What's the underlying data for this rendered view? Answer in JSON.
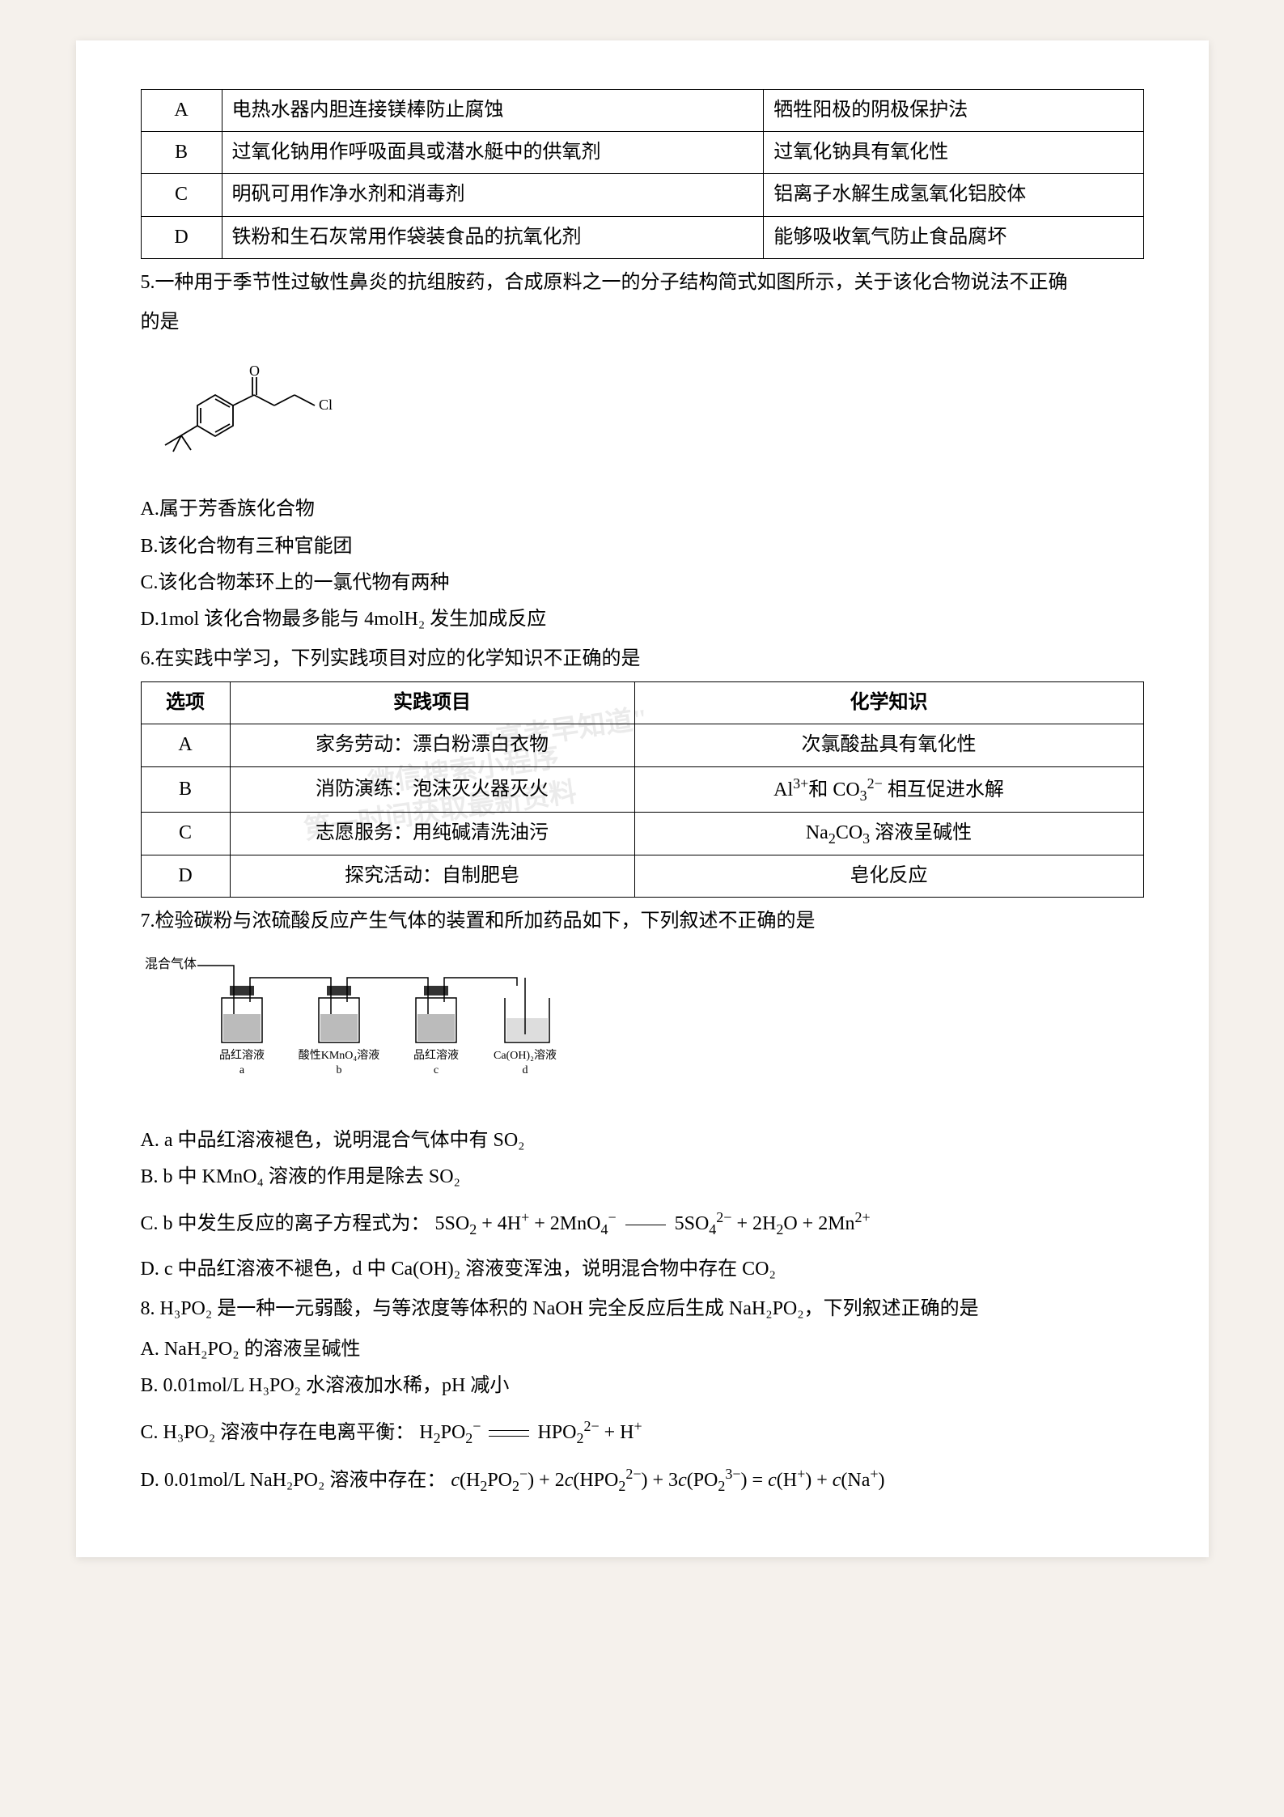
{
  "table1": {
    "rows": [
      {
        "label": "A",
        "col1": "电热水器内胆连接镁棒防止腐蚀",
        "col2": "牺牲阳极的阴极保护法"
      },
      {
        "label": "B",
        "col1": "过氧化钠用作呼吸面具或潜水艇中的供氧剂",
        "col2": "过氧化钠具有氧化性"
      },
      {
        "label": "C",
        "col1": "明矾可用作净水剂和消毒剂",
        "col2": "铝离子水解生成氢氧化铝胶体"
      },
      {
        "label": "D",
        "col1": "铁粉和生石灰常用作袋装食品的抗氧化剂",
        "col2": "能够吸收氧气防止食品腐坏"
      }
    ]
  },
  "q5": {
    "stem1": "5.一种用于季节性过敏性鼻炎的抗组胺药，合成原料之一的分子结构简式如图所示，关于该化合物说法不正确",
    "stem2": "的是",
    "molecule": {
      "label_O": "O",
      "label_Cl": "Cl",
      "colors": {
        "bond": "#000000"
      }
    },
    "optA": "A.属于芳香族化合物",
    "optB": "B.该化合物有三种官能团",
    "optC": "C.该化合物苯环上的一氯代物有两种",
    "optD": "D.1mol 该化合物最多能与 4molH₂ 发生加成反应"
  },
  "q6": {
    "stem": "6.在实践中学习，下列实践项目对应的化学知识不正确的是",
    "headers": {
      "h1": "选项",
      "h2": "实践项目",
      "h3": "化学知识"
    },
    "rows": [
      {
        "label": "A",
        "c1": "家务劳动：漂白粉漂白衣物",
        "c2": "次氯酸盐具有氧化性"
      },
      {
        "label": "B",
        "c1": "消防演练：泡沫灭火器灭火",
        "c2": "Al³⁺和 CO₃²⁻ 相互促进水解"
      },
      {
        "label": "C",
        "c1": "志愿服务：用纯碱清洗油污",
        "c2": "Na₂CO₃ 溶液呈碱性"
      },
      {
        "label": "D",
        "c1": "探究活动：自制肥皂",
        "c2": "皂化反应"
      }
    ]
  },
  "q7": {
    "stem": "7.检验碳粉与浓硫酸反应产生气体的装置和所加药品如下，下列叙述不正确的是",
    "apparatus": {
      "inlet": "混合气体",
      "bottles": [
        {
          "label": "品红溶液",
          "tag": "a"
        },
        {
          "label": "酸性KMnO₄溶液",
          "tag": "b"
        },
        {
          "label": "品红溶液",
          "tag": "c"
        },
        {
          "label": "Ca(OH)₂溶液",
          "tag": "d"
        }
      ],
      "liquid_fill": "#bbb",
      "bottle_stroke": "#000"
    },
    "optA": "A. a 中品红溶液褪色，说明混合气体中有 SO₂",
    "optB": "B. b 中 KMnO₄ 溶液的作用是除去 SO₂",
    "optC_pre": "C. b 中发生反应的离子方程式为：",
    "optC_eq": "5SO₂ + 4H⁺ + 2MnO₄⁻ —— 5SO₄²⁻ + 2H₂O + 2Mn²⁺",
    "optD": "D. c 中品红溶液不褪色，d 中 Ca(OH)₂ 溶液变浑浊，说明混合物中存在 CO₂"
  },
  "q8": {
    "stem": "8. H₃PO₂ 是一种一元弱酸，与等浓度等体积的 NaOH 完全反应后生成 NaH₂PO₂，下列叙述正确的是",
    "optA": "A. NaH₂PO₂ 的溶液呈碱性",
    "optB": "B. 0.01mol/L H₃PO₂ 水溶液加水稀，pH 减小",
    "optC_pre": "C. H₃PO₂ 溶液中存在电离平衡：",
    "optC_eq": "H₂PO₂⁻ ⇌ HPO₂²⁻ + H⁺",
    "optD_pre": "D. 0.01mol/L NaH₂PO₂ 溶液中存在：",
    "optD_eq": "c(H₂PO₂⁻) + 2c(HPO₂²⁻) + 3c(PO₂³⁻) = c(H⁺) + c(Na⁺)"
  },
  "watermarks": {
    "w1": "\"高考早知道\"",
    "w2": "微信搜索小程序",
    "w3": "第一时间获取最新资料"
  }
}
